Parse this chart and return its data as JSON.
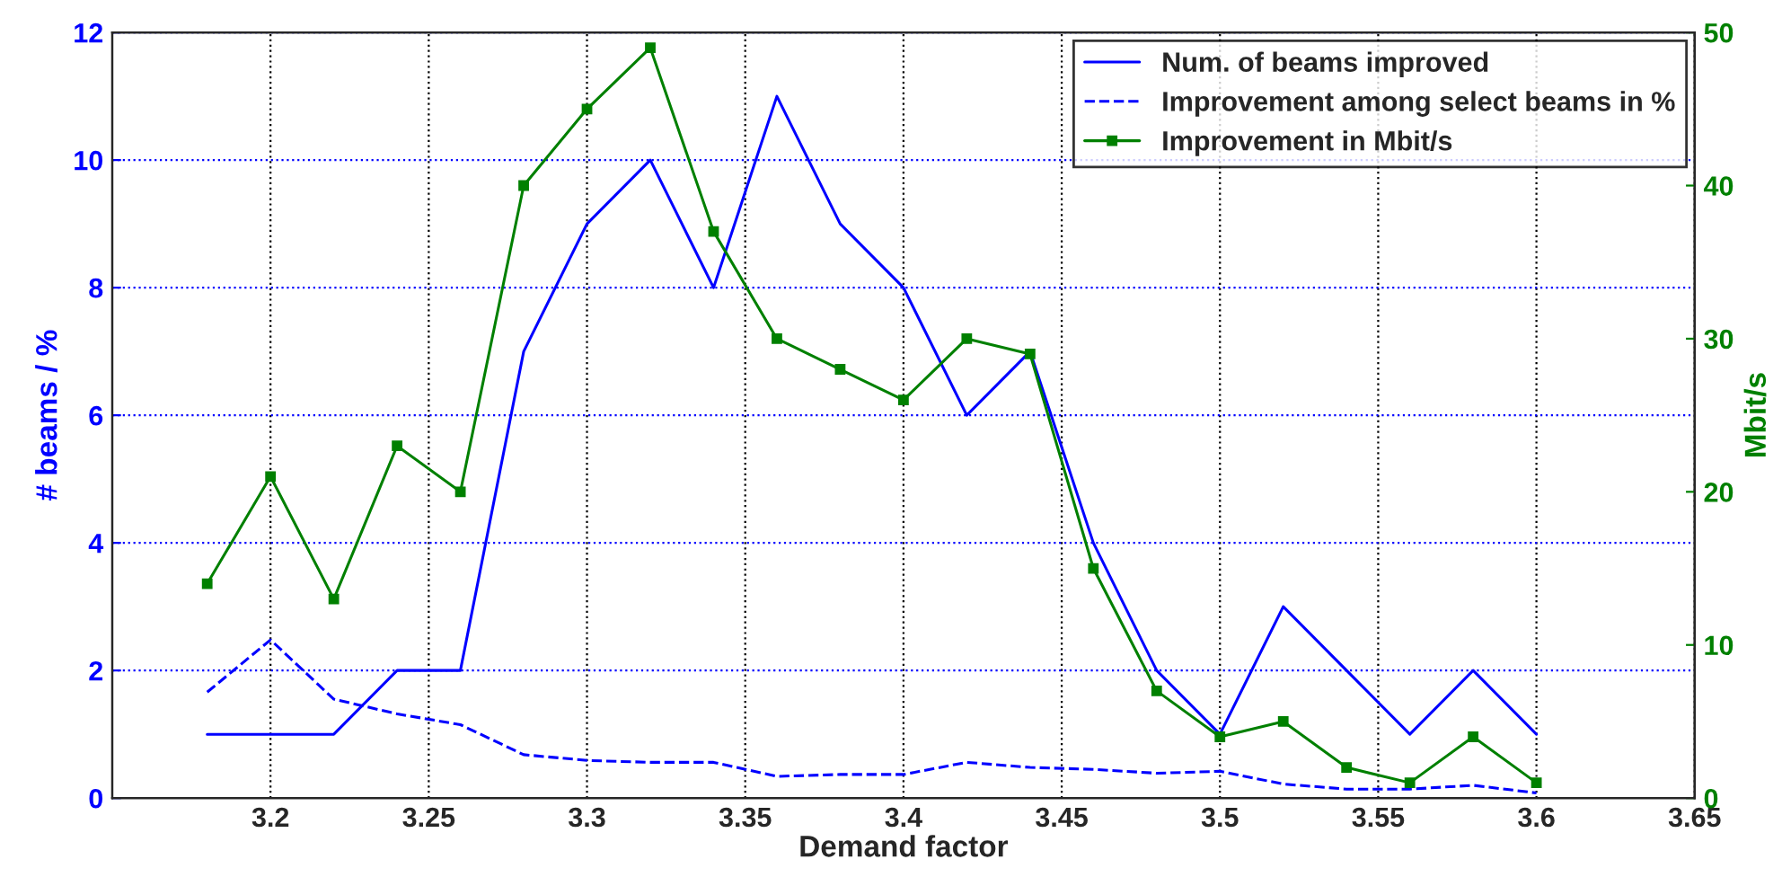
{
  "chart_data": {
    "type": "line",
    "xlabel": "Demand factor",
    "ylabel": "# beams / %",
    "y2label": "Mbit/s",
    "x": [
      3.18,
      3.2,
      3.22,
      3.24,
      3.26,
      3.28,
      3.3,
      3.32,
      3.34,
      3.36,
      3.38,
      3.4,
      3.42,
      3.44,
      3.46,
      3.48,
      3.5,
      3.52,
      3.54,
      3.56,
      3.58,
      3.6
    ],
    "series": [
      {
        "name": "Num. of beams improved",
        "color": "#0000ff",
        "line_style": "solid",
        "marker": "none",
        "values": [
          1,
          1,
          1,
          2,
          2,
          7,
          9,
          10,
          8,
          11,
          9,
          8,
          6,
          7,
          4,
          2,
          1,
          3,
          2,
          1,
          2,
          1
        ]
      },
      {
        "name": "Improvement among select beams in %",
        "color": "#0000ff",
        "line_style": "dashed",
        "marker": "none",
        "values": [
          1.66,
          2.48,
          1.55,
          1.32,
          1.15,
          0.68,
          0.59,
          0.56,
          0.56,
          0.34,
          0.37,
          0.37,
          0.56,
          0.48,
          0.45,
          0.39,
          0.42,
          0.22,
          0.14,
          0.14,
          0.2,
          0.08
        ]
      },
      {
        "name": "Improvement in Mbit/s",
        "color": "#008000",
        "line_style": "solid",
        "marker": "square",
        "axis": "y2",
        "values": [
          14,
          21,
          13,
          23,
          20,
          40,
          45,
          49,
          37,
          30,
          28,
          26,
          30,
          29,
          15,
          7,
          4,
          5,
          2,
          1,
          4,
          1
        ]
      }
    ],
    "xlim": [
      3.15,
      3.65
    ],
    "xticks": [
      3.2,
      3.25,
      3.3,
      3.35,
      3.4,
      3.45,
      3.5,
      3.55,
      3.6,
      3.65
    ],
    "ylim": [
      0,
      12
    ],
    "yticks": [
      0,
      2,
      4,
      6,
      8,
      10,
      12
    ],
    "y2lim": [
      0,
      50
    ],
    "y2ticks": [
      0,
      10,
      20,
      30,
      40,
      50
    ],
    "grid": true,
    "legend": "top right"
  }
}
